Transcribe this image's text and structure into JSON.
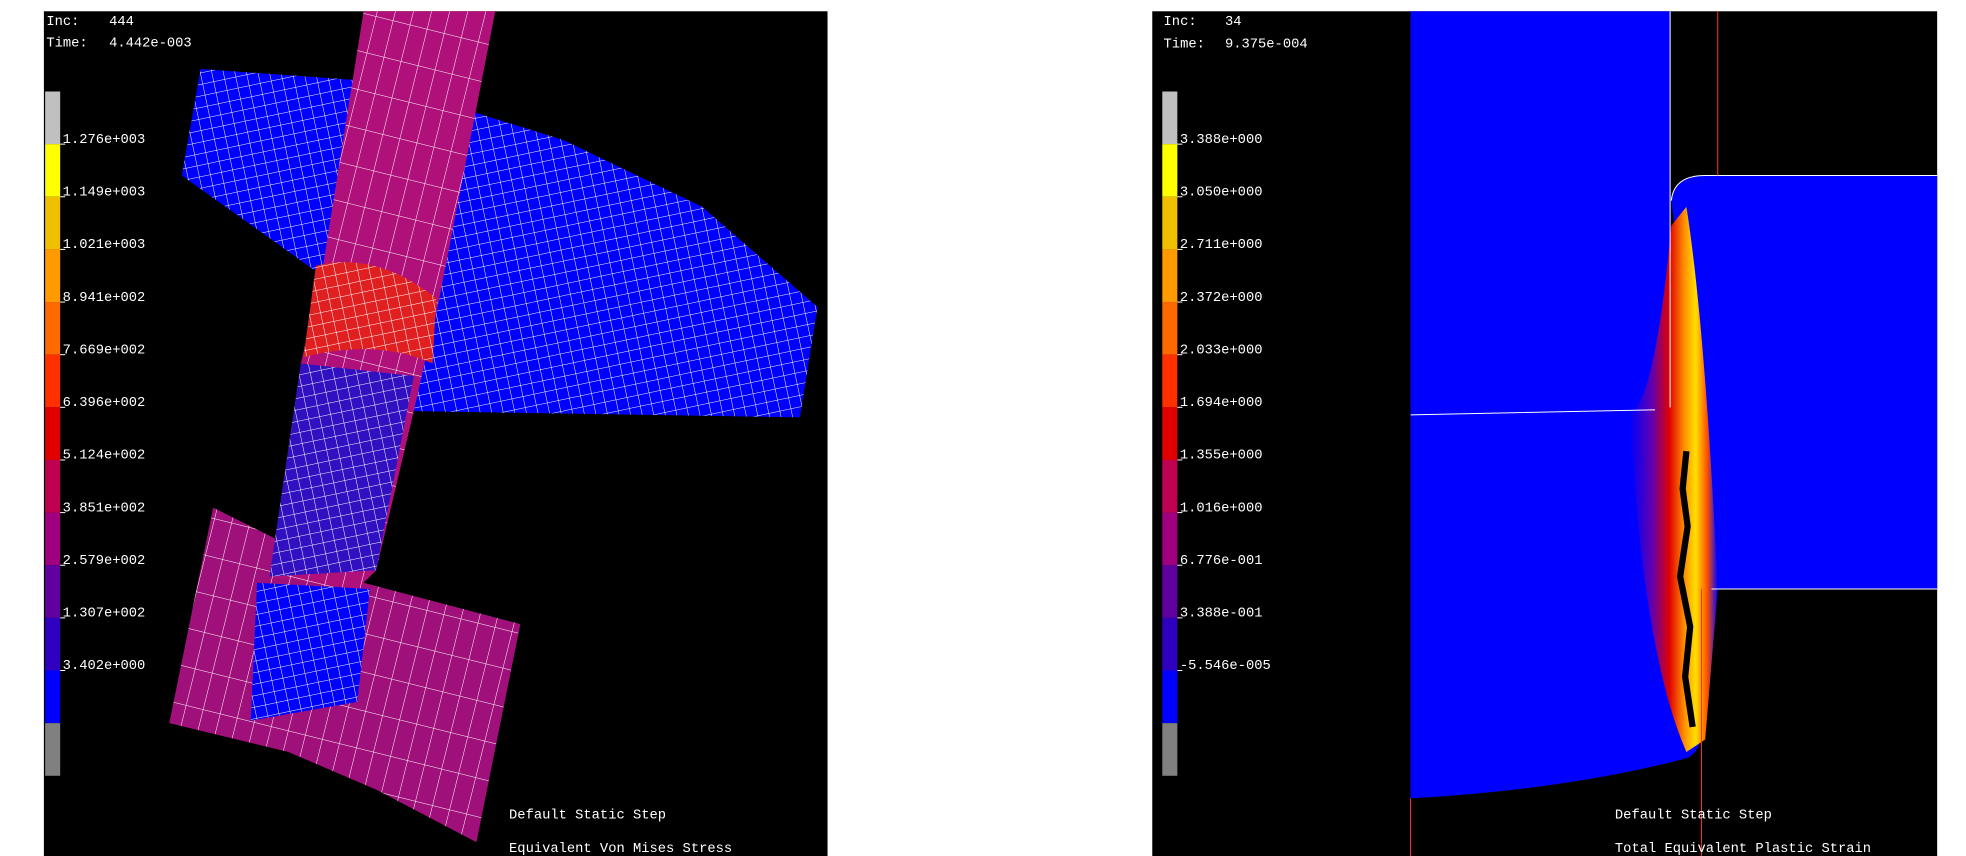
{
  "left": {
    "inc_label": "Inc:",
    "inc": "444",
    "time_label": "Time:",
    "time": "4.442e-003",
    "legend": [
      "1.276e+003",
      "1.149e+003",
      "1.021e+003",
      "8.941e+002",
      "7.669e+002",
      "6.396e+002",
      "5.124e+002",
      "3.851e+002",
      "2.579e+002",
      "1.307e+002",
      "3.402e+000"
    ],
    "step": "Default Static Step",
    "variable": "Equivalent Von Mises Stress"
  },
  "right": {
    "inc_label": "Inc:",
    "inc": "34",
    "time_label": "Time:",
    "time": "9.375e-004",
    "legend": [
      "3.388e+000",
      "3.050e+000",
      "2.711e+000",
      "2.372e+000",
      "2.033e+000",
      "1.694e+000",
      "1.355e+000",
      "1.016e+000",
      "6.776e-001",
      "3.388e-001",
      "-5.546e-005"
    ],
    "step": "Default Static Step",
    "variable": "Total Equivalent Plastic Strain"
  }
}
